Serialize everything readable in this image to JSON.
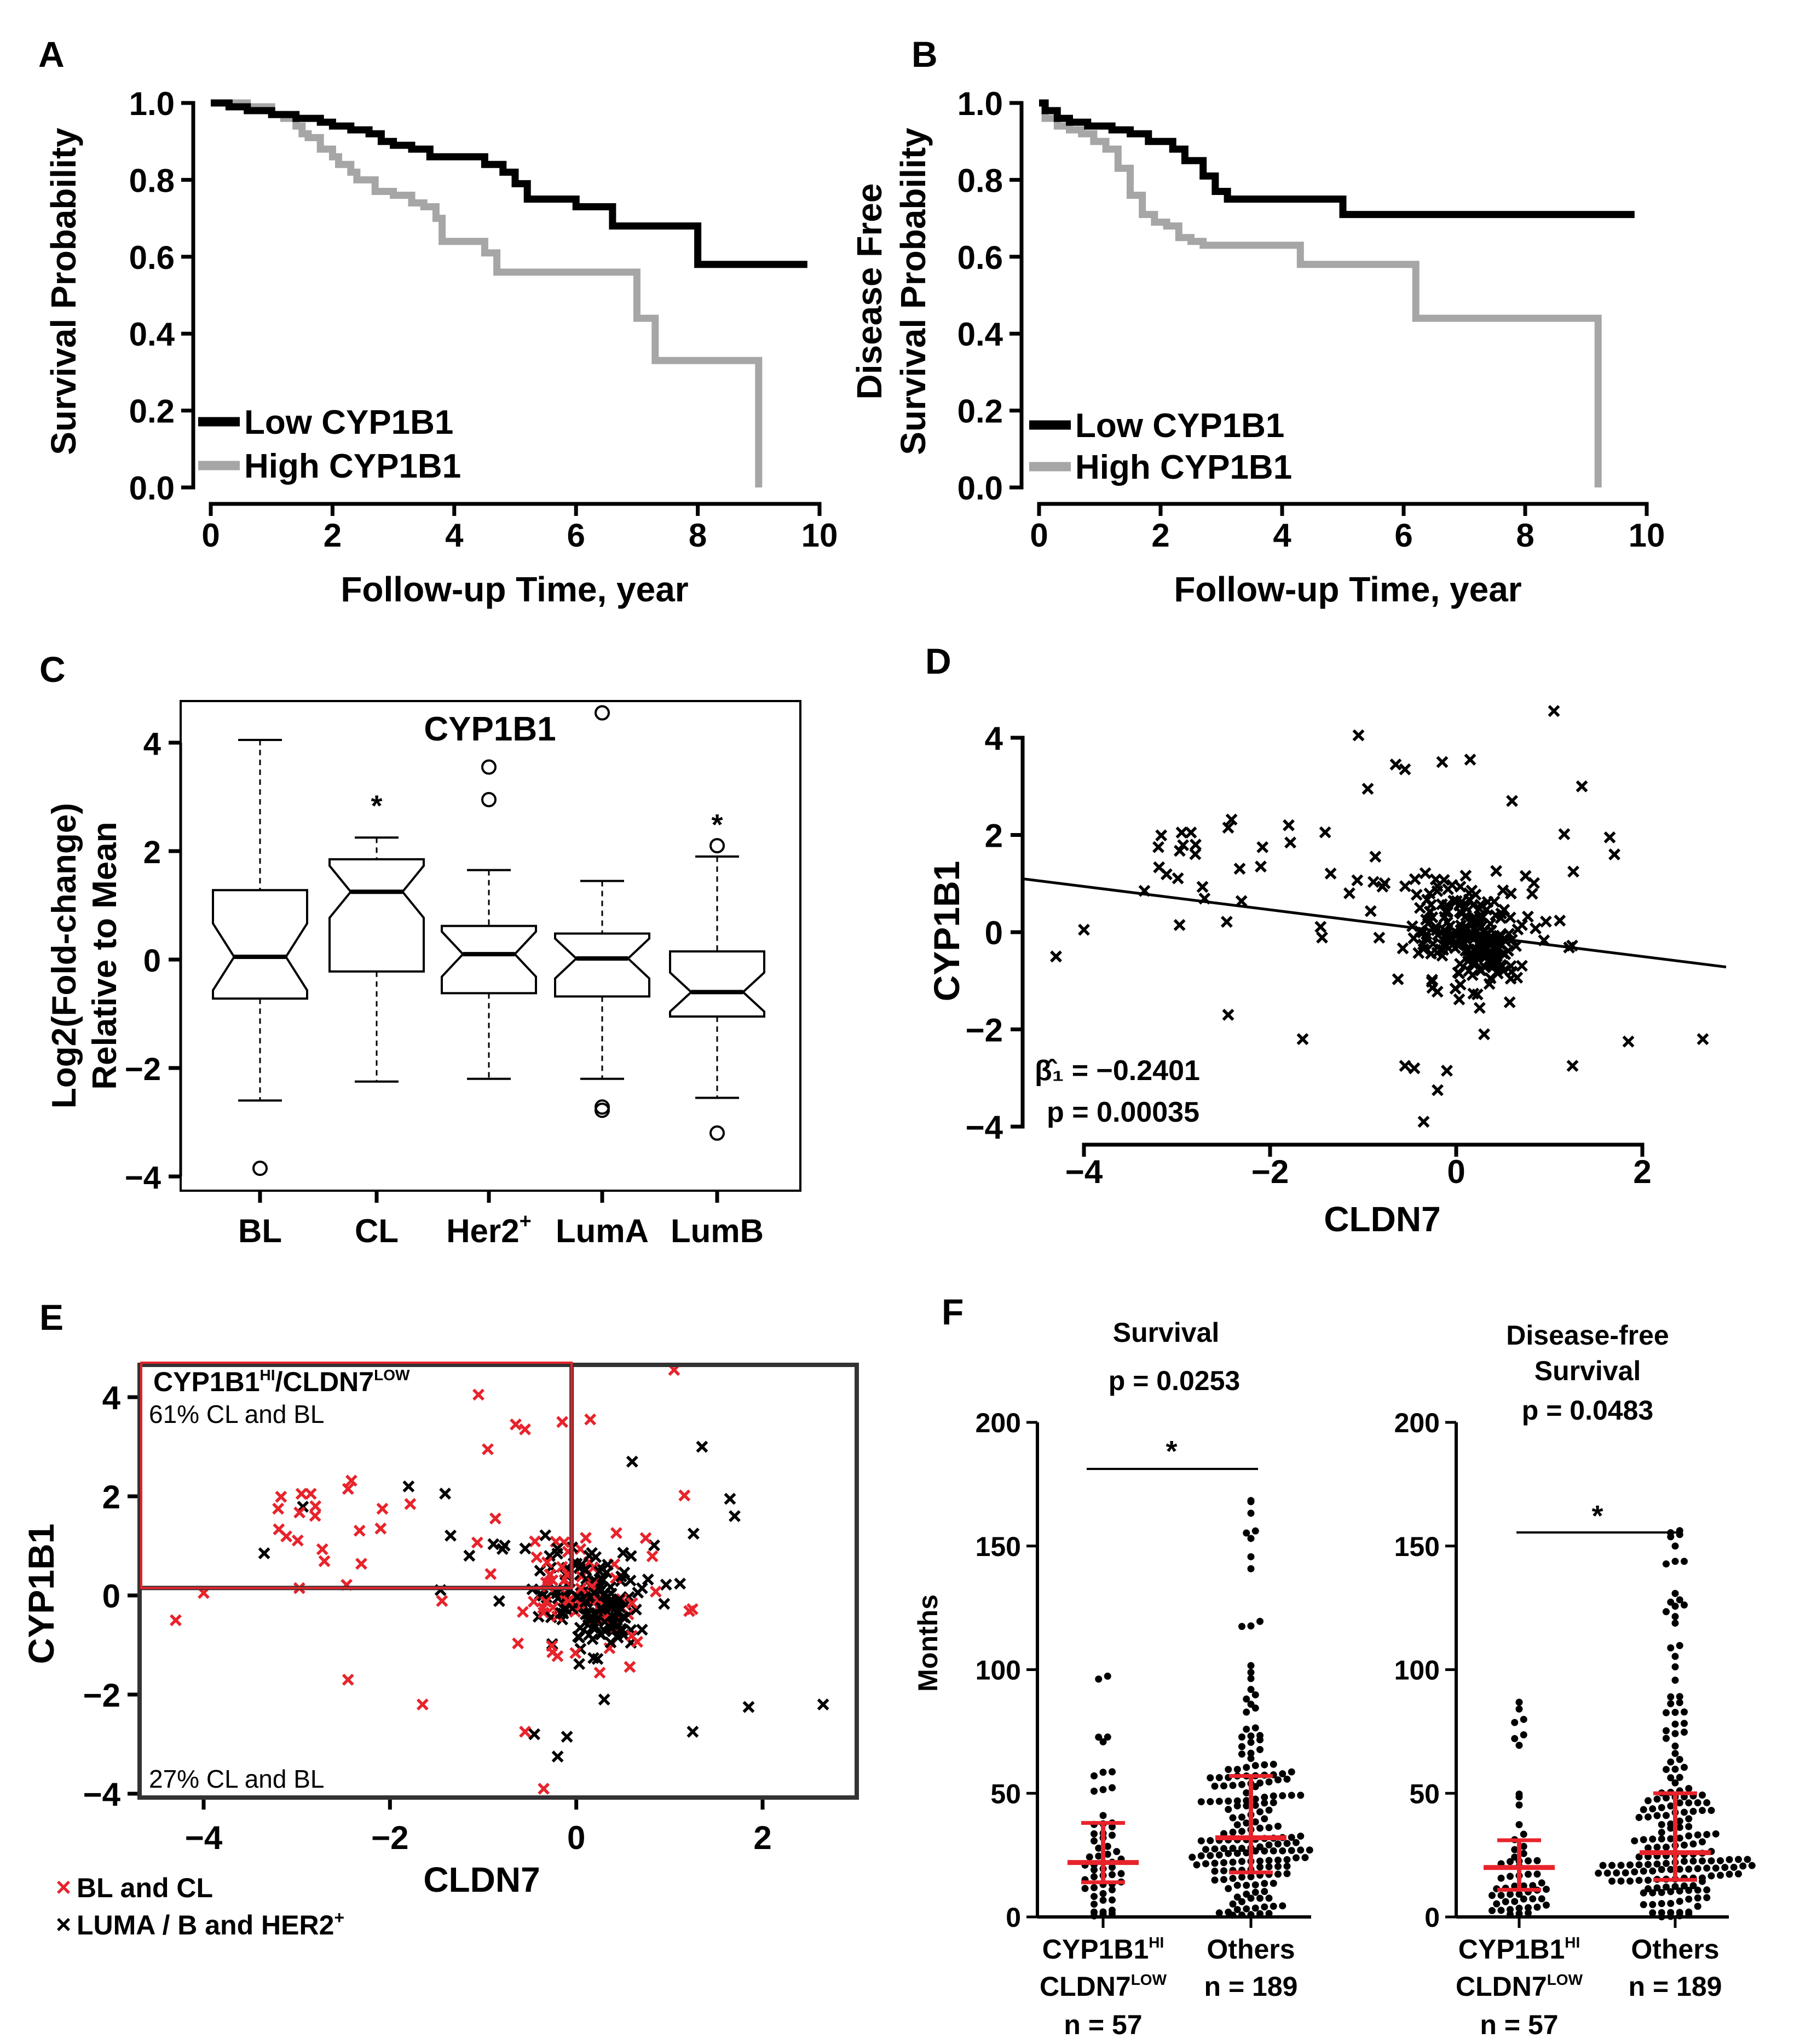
{
  "chart_data": [
    {
      "panel": "A",
      "type": "line",
      "subtype": "kaplan-meier",
      "xlabel": "Follow-up Time, year",
      "ylabel": "Survival Probability",
      "xlim": [
        0,
        10
      ],
      "ylim": [
        0,
        1
      ],
      "xticks": [
        "0",
        "2",
        "4",
        "6",
        "8",
        "10"
      ],
      "yticks": [
        "0.0",
        "0.2",
        "0.4",
        "0.6",
        "0.8",
        "1.0"
      ],
      "legend": "bottom-left",
      "series": [
        {
          "name": "Low CYP1B1",
          "color": "#000000",
          "x": [
            0,
            0.3,
            0.6,
            1.0,
            1.4,
            1.8,
            2.0,
            2.3,
            2.6,
            2.8,
            3.0,
            3.3,
            3.6,
            4.2,
            4.5,
            4.8,
            5.0,
            5.2,
            5.5,
            6.0,
            6.2,
            6.6,
            7.0,
            7.2,
            7.7,
            8.0,
            8.5,
            8.8,
            9.8
          ],
          "y": [
            1.0,
            0.99,
            0.98,
            0.97,
            0.96,
            0.95,
            0.94,
            0.93,
            0.92,
            0.9,
            0.89,
            0.88,
            0.86,
            0.86,
            0.84,
            0.82,
            0.79,
            0.75,
            0.75,
            0.73,
            0.73,
            0.68,
            0.68,
            0.68,
            0.68,
            0.58,
            0.58,
            0.58,
            0.58
          ]
        },
        {
          "name": "High CYP1B1",
          "color": "#a6a6a6",
          "x": [
            0,
            0.6,
            1.0,
            1.2,
            1.4,
            1.5,
            1.6,
            1.8,
            2.0,
            2.1,
            2.3,
            2.4,
            2.7,
            3.0,
            3.3,
            3.5,
            3.7,
            3.8,
            4.3,
            4.5,
            4.7,
            5.0,
            6.0,
            6.3,
            6.8,
            7.0,
            7.3,
            7.5,
            8.0,
            8.5,
            9.0
          ],
          "y": [
            1.0,
            0.99,
            0.97,
            0.96,
            0.94,
            0.92,
            0.91,
            0.88,
            0.86,
            0.84,
            0.82,
            0.8,
            0.77,
            0.76,
            0.74,
            0.73,
            0.7,
            0.64,
            0.64,
            0.61,
            0.56,
            0.56,
            0.56,
            0.56,
            0.56,
            0.44,
            0.33,
            0.33,
            0.33,
            0.33,
            0.0
          ]
        }
      ]
    },
    {
      "panel": "B",
      "type": "line",
      "subtype": "kaplan-meier",
      "xlabel": "Follow-up Time, year",
      "ylabel_lines": [
        "Disease Free",
        "Survival Probability"
      ],
      "xlim": [
        0,
        10
      ],
      "ylim": [
        0,
        1
      ],
      "xticks": [
        "0",
        "2",
        "4",
        "6",
        "8",
        "10"
      ],
      "yticks": [
        "0.0",
        "0.2",
        "0.4",
        "0.6",
        "0.8",
        "1.0"
      ],
      "legend": "bottom-left",
      "series": [
        {
          "name": "Low CYP1B1",
          "color": "#000000",
          "x": [
            0,
            0.1,
            0.3,
            0.5,
            0.8,
            1.2,
            1.5,
            1.8,
            2.2,
            2.4,
            2.7,
            2.9,
            3.1,
            3.5,
            4.0,
            5.0,
            5.5,
            9.8
          ],
          "y": [
            1.0,
            0.98,
            0.96,
            0.95,
            0.94,
            0.93,
            0.92,
            0.9,
            0.88,
            0.85,
            0.81,
            0.77,
            0.75,
            0.75,
            0.75,
            0.71,
            0.71,
            0.71
          ]
        },
        {
          "name": "High CYP1B1",
          "color": "#a6a6a6",
          "x": [
            0,
            0.1,
            0.3,
            0.5,
            0.7,
            0.9,
            1.1,
            1.3,
            1.5,
            1.7,
            1.9,
            2.1,
            2.3,
            2.5,
            2.7,
            3.0,
            4.3,
            6.2,
            7.0,
            9.0,
            9.2
          ],
          "y": [
            1.0,
            0.96,
            0.94,
            0.93,
            0.92,
            0.9,
            0.88,
            0.83,
            0.76,
            0.71,
            0.69,
            0.68,
            0.65,
            0.64,
            0.63,
            0.63,
            0.58,
            0.44,
            0.44,
            0.44,
            0.0
          ]
        }
      ]
    },
    {
      "panel": "C",
      "type": "box",
      "title": "CYP1B1",
      "ylabel_lines": [
        "Log2(Fold-change)",
        "Relative to Mean"
      ],
      "ylim": [
        -4.2,
        4.9
      ],
      "yticks": [
        -4,
        -2,
        0,
        2,
        4
      ],
      "categories": [
        "BL",
        "CL",
        "Her2+",
        "LumA",
        "LumB"
      ],
      "boxes": [
        {
          "name": "BL",
          "whisker_low": -2.6,
          "q1": -0.72,
          "median": 0.05,
          "q3": 1.28,
          "whisker_high": 4.05,
          "outliers": [
            -3.85
          ],
          "star": false
        },
        {
          "name": "CL",
          "whisker_low": -2.25,
          "q1": -0.22,
          "median": 1.25,
          "q3": 1.85,
          "whisker_high": 2.25,
          "outliers": [],
          "star": true
        },
        {
          "name": "Her2+",
          "whisker_low": -2.2,
          "q1": -0.62,
          "median": 0.1,
          "q3": 0.62,
          "whisker_high": 1.65,
          "outliers": [
            2.95,
            3.55
          ],
          "star": false
        },
        {
          "name": "LumA",
          "whisker_low": -2.2,
          "q1": -0.68,
          "median": 0.02,
          "q3": 0.48,
          "whisker_high": 1.45,
          "outliers": [
            -2.72,
            -2.78,
            4.55
          ],
          "star": false
        },
        {
          "name": "LumB",
          "whisker_low": -2.55,
          "q1": -1.05,
          "median": -0.6,
          "q3": 0.15,
          "whisker_high": 1.9,
          "outliers": [
            2.1,
            -3.2
          ],
          "star": true
        }
      ],
      "star_label": "*"
    },
    {
      "panel": "D",
      "type": "scatter",
      "xlabel": "CLDN7",
      "ylabel": "CYP1B1",
      "xlim": [
        -4.7,
        2.9
      ],
      "ylim": [
        -4.3,
        4.5
      ],
      "xticks": [
        -4,
        -2,
        0,
        2
      ],
      "yticks": [
        -4,
        -2,
        0,
        2,
        4
      ],
      "regression": {
        "slope": -0.2401,
        "intercept": -0.02
      },
      "annotation_beta": "β̂₁ = −0.2401",
      "annotation_p": "p = 0.00035",
      "point_count": 260
    },
    {
      "panel": "E",
      "type": "scatter",
      "xlabel": "CLDN7",
      "ylabel": "CYP1B1",
      "xlim": [
        -4.75,
        3.05
      ],
      "ylim": [
        -4.1,
        4.9
      ],
      "xticks": [
        -4,
        -2,
        0,
        2
      ],
      "yticks": [
        -4,
        -2,
        0,
        2,
        4
      ],
      "series": [
        {
          "name": "BL and CL",
          "color": "#e8232b"
        },
        {
          "name": "LUMA / B and HER2+",
          "color": "#000000"
        }
      ],
      "threshold": {
        "x": -0.05,
        "y": 0.15
      },
      "box_title": "CYP1B1HI/CLDN7LOW",
      "quadrant_upper_left": "61% CL and BL",
      "quadrant_lower_left": "27% CL and BL",
      "legend": "bottom-left"
    },
    {
      "panel": "F",
      "type": "dot-plot",
      "ylabel": "Months",
      "ylim": [
        0,
        200
      ],
      "yticks": [
        0,
        50,
        100,
        150,
        200
      ],
      "subplots": [
        {
          "title": "Survival",
          "p": "p = 0.0253",
          "star": "*",
          "groups": [
            {
              "label": "CYP1B1HI CLDN7LOW",
              "n": "n = 57",
              "median": 22,
              "q1": 14,
              "q3": 38
            },
            {
              "label": "Others",
              "n": "n = 189",
              "median": 32,
              "q1": 18,
              "q3": 57
            }
          ]
        },
        {
          "title": "Disease-free Survival",
          "p": "p = 0.0483",
          "star": "*",
          "groups": [
            {
              "label": "CYP1B1HI CLDN7LOW",
              "n": "n = 57",
              "median": 20,
              "q1": 11,
              "q3": 31
            },
            {
              "label": "Others",
              "n": "n = 189",
              "median": 26,
              "q1": 15,
              "q3": 50
            }
          ]
        }
      ]
    }
  ],
  "labels": {
    "panel_a": "A",
    "panel_b": "B",
    "panel_c": "C",
    "panel_d": "D",
    "panel_e": "E",
    "panel_f": "F",
    "ab_legend_low": "Low CYP1B1",
    "ab_legend_high": "High CYP1B1",
    "ab_xlabel": "Follow-up Time, year",
    "a_ylabel": "Survival Probability",
    "b_ylabel_1": "Disease Free",
    "b_ylabel_2": "Survival Probability",
    "c_title": "CYP1B1",
    "c_ylabel_1": "Log2(Fold-change)",
    "c_ylabel_2": "Relative to Mean",
    "c_cat_bl": "BL",
    "c_cat_cl": "CL",
    "c_cat_her2": "Her2",
    "c_cat_her2_sup": "+",
    "c_cat_luma": "LumA",
    "c_cat_lumb": "LumB",
    "star": "*",
    "d_xlabel": "CLDN7",
    "d_ylabel": "CYP1B1",
    "d_beta": "β̂₁ = −0.2401",
    "d_p": "p = 0.00035",
    "e_xlabel": "CLDN7",
    "e_ylabel": "CYP1B1",
    "e_box_title_a": "CYP1B1",
    "e_box_title_sup1": "HI",
    "e_box_title_b": "/CLDN7",
    "e_box_title_sup2": "LOW",
    "e_upper": "61% CL and BL",
    "e_lower": "27% CL and BL",
    "e_legend_red": "BL and CL",
    "e_legend_black": "LUMA / B and HER2",
    "e_legend_black_sup": "+",
    "f_ylabel": "Months",
    "f1_title": "Survival",
    "f1_p": "p = 0.0253",
    "f2_title_1": "Disease-free",
    "f2_title_2": "Survival",
    "f2_p": "p = 0.0483",
    "f_group_hi_a": "CYP1B1",
    "f_group_hi_sup": "HI",
    "f_group_hi_b": "CLDN7",
    "f_group_hi_sup2": "LOW",
    "f_n_hi": "n = 57",
    "f_group_others": "Others",
    "f_n_others": "n = 189"
  }
}
